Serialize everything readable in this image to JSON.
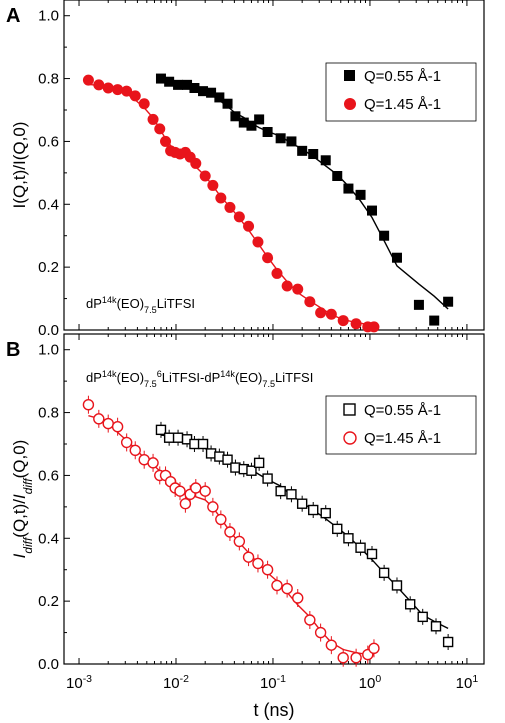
{
  "figure": {
    "xlabel": "t (ns)",
    "x_ticks": [
      "10-3",
      "10-2",
      "10-1",
      "100",
      "101"
    ]
  },
  "chart_data": [
    {
      "type": "scatter",
      "panel_label": "A",
      "annotation": "dP14k(EO)7.5LiTFSI",
      "ylabel": "I(Q,t)/I(Q,0)",
      "xlabel": "t (ns)",
      "xscale": "log",
      "xlim": [
        0.0007,
        15
      ],
      "ylim": [
        0,
        1.05
      ],
      "y_ticks": [
        "0.0",
        "0.2",
        "0.4",
        "0.6",
        "0.8",
        "1.0"
      ],
      "grid": false,
      "legend_position": "top-right",
      "series": [
        {
          "name": "Q=0.55 Å-1",
          "marker": "filled-square",
          "color": "#000000",
          "x": [
            0.007,
            0.0085,
            0.0105,
            0.013,
            0.0155,
            0.019,
            0.023,
            0.028,
            0.034,
            0.041,
            0.05,
            0.06,
            0.072,
            0.088,
            0.12,
            0.155,
            0.2,
            0.26,
            0.35,
            0.46,
            0.6,
            0.8,
            1.05,
            1.4,
            1.9,
            3.2,
            4.6,
            6.4
          ],
          "y": [
            0.8,
            0.79,
            0.78,
            0.78,
            0.77,
            0.76,
            0.755,
            0.74,
            0.72,
            0.68,
            0.66,
            0.65,
            0.67,
            0.63,
            0.61,
            0.6,
            0.57,
            0.56,
            0.54,
            0.49,
            0.45,
            0.43,
            0.38,
            0.3,
            0.23,
            0.08,
            0.03,
            0.09
          ]
        },
        {
          "name": "Q=1.45 Å-1",
          "marker": "filled-circle",
          "color": "#e8141b",
          "x": [
            0.00125,
            0.0016,
            0.002,
            0.0025,
            0.0031,
            0.0038,
            0.0047,
            0.0058,
            0.0068,
            0.0078,
            0.0088,
            0.0098,
            0.011,
            0.0125,
            0.014,
            0.016,
            0.02,
            0.024,
            0.029,
            0.036,
            0.045,
            0.056,
            0.07,
            0.088,
            0.11,
            0.14,
            0.18,
            0.24,
            0.31,
            0.4,
            0.53,
            0.72,
            0.95,
            1.1
          ],
          "y": [
            0.795,
            0.78,
            0.77,
            0.765,
            0.76,
            0.745,
            0.72,
            0.67,
            0.64,
            0.6,
            0.57,
            0.565,
            0.56,
            0.565,
            0.55,
            0.53,
            0.49,
            0.46,
            0.42,
            0.39,
            0.36,
            0.33,
            0.28,
            0.23,
            0.18,
            0.14,
            0.13,
            0.09,
            0.055,
            0.05,
            0.03,
            0.02,
            0.01,
            0.01
          ]
        }
      ]
    },
    {
      "type": "scatter",
      "panel_label": "B",
      "annotation": "dP14k(EO)7.56LiTFSI-dP14k(EO)7.5LiTFSI",
      "ylabel": "Idiff(Q,t)/Idiff(Q,0)",
      "xlabel": "t (ns)",
      "xscale": "log",
      "xlim": [
        0.0007,
        15
      ],
      "ylim": [
        0,
        1.05
      ],
      "y_ticks": [
        "0.0",
        "0.2",
        "0.4",
        "0.6",
        "0.8",
        "1.0"
      ],
      "grid": false,
      "legend_position": "top-right",
      "series": [
        {
          "name": "Q=0.55 Å-1",
          "marker": "open-square",
          "color": "#000000",
          "x": [
            0.007,
            0.0085,
            0.0105,
            0.013,
            0.0155,
            0.019,
            0.023,
            0.028,
            0.034,
            0.041,
            0.05,
            0.06,
            0.072,
            0.088,
            0.12,
            0.155,
            0.2,
            0.26,
            0.35,
            0.46,
            0.6,
            0.8,
            1.05,
            1.4,
            1.9,
            2.6,
            3.5,
            4.8,
            6.4
          ],
          "y": [
            0.745,
            0.72,
            0.72,
            0.715,
            0.7,
            0.7,
            0.67,
            0.66,
            0.65,
            0.625,
            0.62,
            0.615,
            0.64,
            0.59,
            0.55,
            0.54,
            0.51,
            0.49,
            0.48,
            0.43,
            0.4,
            0.37,
            0.35,
            0.29,
            0.25,
            0.19,
            0.15,
            0.12,
            0.07
          ]
        },
        {
          "name": "Q=1.45 Å-1",
          "marker": "open-circle",
          "color": "#e8141b",
          "x": [
            0.00125,
            0.0016,
            0.002,
            0.0025,
            0.0031,
            0.0038,
            0.0047,
            0.0058,
            0.0068,
            0.0078,
            0.0088,
            0.0098,
            0.011,
            0.0125,
            0.014,
            0.016,
            0.02,
            0.024,
            0.029,
            0.036,
            0.045,
            0.056,
            0.07,
            0.088,
            0.11,
            0.14,
            0.18,
            0.24,
            0.31,
            0.4,
            0.53,
            0.72,
            0.95,
            1.1
          ],
          "y": [
            0.825,
            0.78,
            0.765,
            0.755,
            0.705,
            0.68,
            0.65,
            0.64,
            0.6,
            0.6,
            0.58,
            0.56,
            0.55,
            0.51,
            0.54,
            0.56,
            0.55,
            0.5,
            0.46,
            0.42,
            0.39,
            0.34,
            0.32,
            0.3,
            0.25,
            0.24,
            0.21,
            0.14,
            0.1,
            0.06,
            0.02,
            0.02,
            0.03,
            0.05
          ]
        }
      ]
    }
  ]
}
